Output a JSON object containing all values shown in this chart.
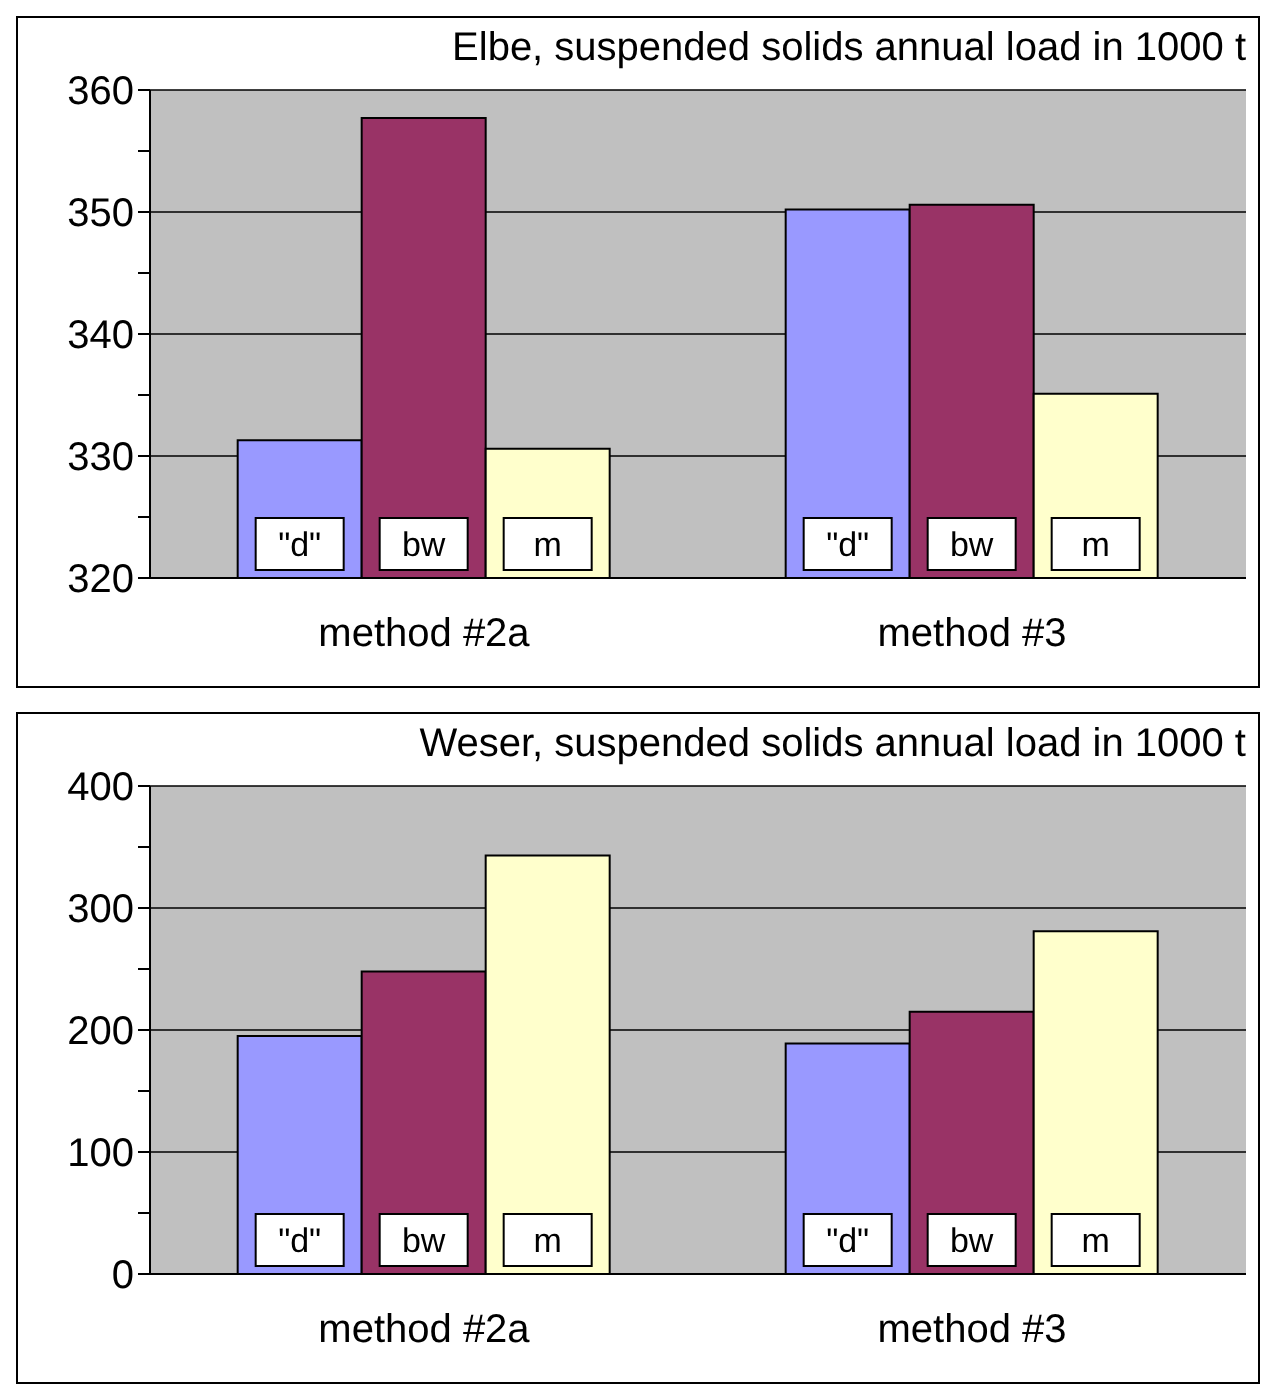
{
  "chart_data": [
    {
      "type": "bar",
      "title": "Elbe, suspended solids annual load in 1000 t",
      "categories": [
        "method #2a",
        "method #3"
      ],
      "series": [
        {
          "name": "\"d\"",
          "color": "#9999ff",
          "values": [
            331.3,
            350.2
          ]
        },
        {
          "name": "bw",
          "color": "#993366",
          "values": [
            357.7,
            350.6
          ]
        },
        {
          "name": "m",
          "color": "#ffffcc",
          "values": [
            330.6,
            335.1
          ]
        }
      ],
      "ylim": [
        320,
        360
      ],
      "yticks": [
        320,
        {
          "value": 325,
          "label": null
        },
        330,
        {
          "value": 335,
          "label": null
        },
        340,
        {
          "value": 345,
          "label": null
        },
        350,
        {
          "value": 355,
          "label": null
        },
        360
      ],
      "grid": "y",
      "legend": false
    },
    {
      "type": "bar",
      "title": "Weser,  suspended solids annual load in 1000 t",
      "categories": [
        "method #2a",
        "method #3"
      ],
      "series": [
        {
          "name": "\"d\"",
          "color": "#9999ff",
          "values": [
            195,
            189
          ]
        },
        {
          "name": "bw",
          "color": "#993366",
          "values": [
            248,
            215
          ]
        },
        {
          "name": "m",
          "color": "#ffffcc",
          "values": [
            343,
            281
          ]
        }
      ],
      "ylim": [
        0,
        400
      ],
      "yticks": [
        0,
        {
          "value": 50,
          "label": null
        },
        100,
        {
          "value": 150,
          "label": null
        },
        200,
        {
          "value": 250,
          "label": null
        },
        300,
        {
          "value": 350,
          "label": null
        },
        400
      ],
      "grid": "y",
      "legend": false
    }
  ]
}
